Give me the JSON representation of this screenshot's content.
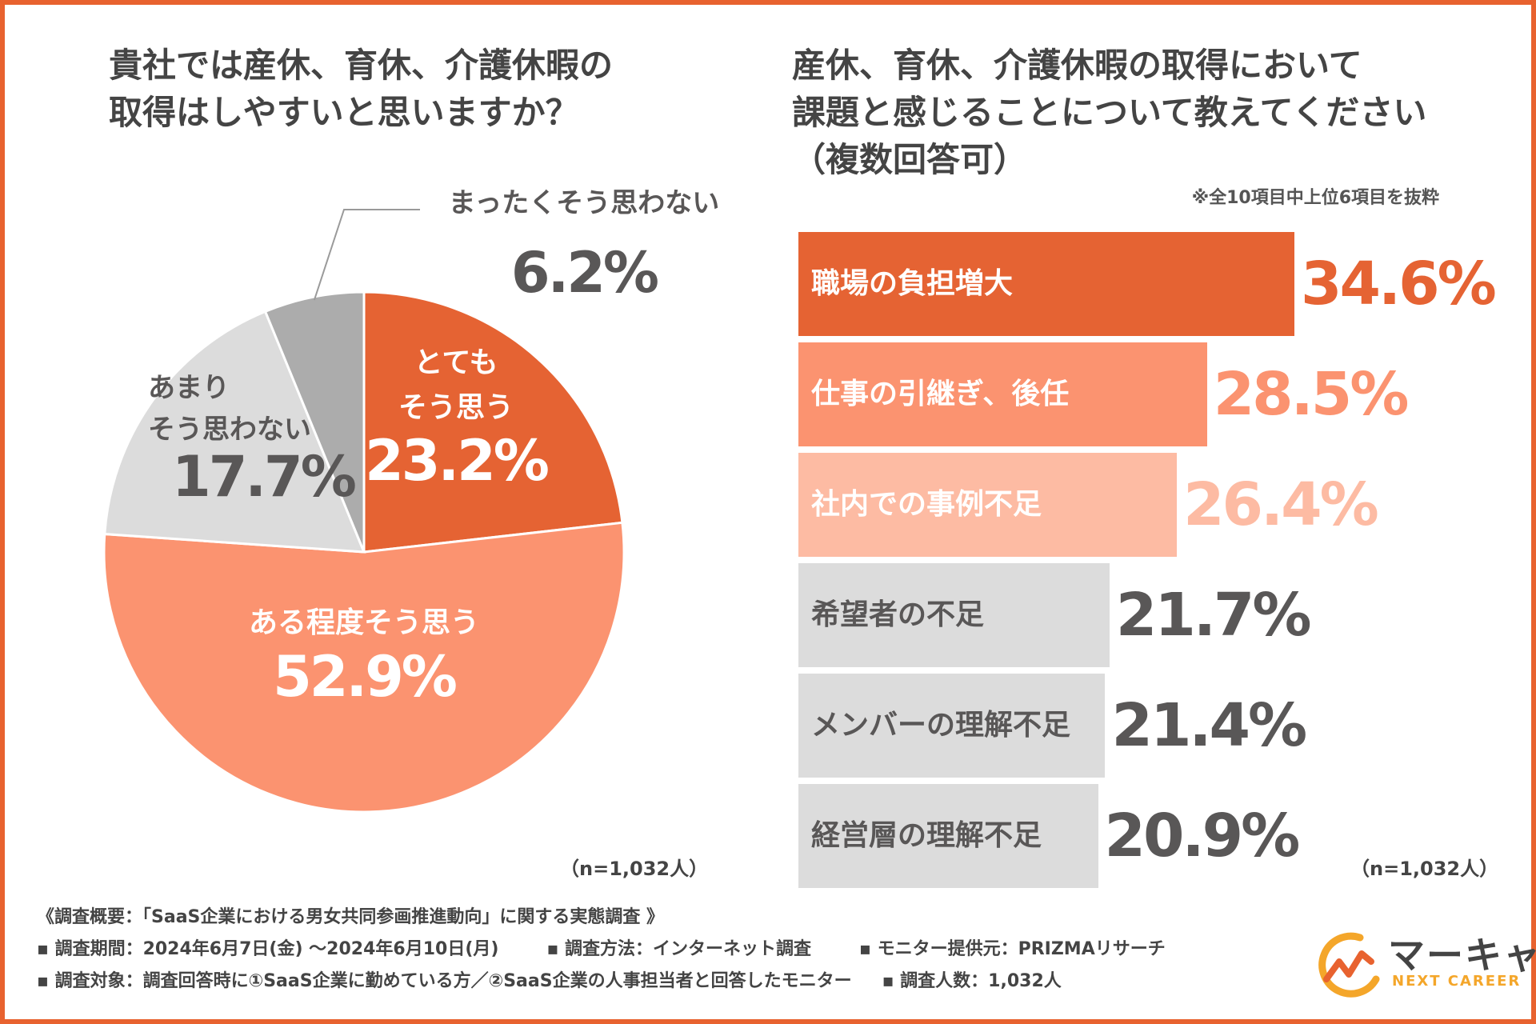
{
  "pie_chart": {
    "title_lines": [
      "貴社では産休、育休、介護休暇の",
      "取得はしやすいと思いますか？"
    ],
    "sample_size": "（n=1,032人）",
    "chart_data": {
      "type": "pie",
      "title": "貴社では産休、育休、介護休暇の取得はしやすいと思いますか？",
      "slices": [
        {
          "label_lines": [
            "とても",
            "そう思う"
          ],
          "value": 23.2,
          "value_text": "23.2%",
          "color": "#e56333",
          "label_color": "#ffffff"
        },
        {
          "label_lines": [
            "ある程度そう思う"
          ],
          "value": 52.9,
          "value_text": "52.9%",
          "color": "#fb9370",
          "label_color": "#ffffff"
        },
        {
          "label_lines": [
            "あまり",
            "そう思わない"
          ],
          "value": 17.7,
          "value_text": "17.7%",
          "color": "#dcdcdc",
          "label_color": "#595757"
        },
        {
          "label_lines": [
            "まったくそう思わない"
          ],
          "value": 6.2,
          "value_text": "6.2%",
          "color": "#acacac",
          "label_color": "#595757"
        }
      ]
    }
  },
  "bar_chart": {
    "title_lines": [
      "産休、育休、介護休暇の取得において",
      "課題と感じることについて教えてください",
      "（複数回答可）"
    ],
    "note": "※全10項目中上位6項目を抜粋",
    "sample_size": "（n=1,032人）",
    "chart_data": {
      "type": "bar",
      "orientation": "horizontal",
      "title": "産休、育休、介護休暇の取得において課題と感じることについて教えてください（複数回答可）",
      "categories": [
        "職場の負担増大",
        "仕事の引継ぎ、後任",
        "社内での事例不足",
        "希望者の不足",
        "メンバーの理解不足",
        "経営層の理解不足"
      ],
      "values": [
        34.6,
        28.5,
        26.4,
        21.7,
        21.4,
        20.9
      ],
      "value_texts": [
        "34.6%",
        "28.5%",
        "26.4%",
        "21.7%",
        "21.4%",
        "20.9%"
      ],
      "colors": [
        "#e56333",
        "#fb9370",
        "#fdbba3",
        "#dcdcdc",
        "#dcdcdc",
        "#dcdcdc"
      ],
      "label_colors": [
        "#ffffff",
        "#ffffff",
        "#ffffff",
        "#595757",
        "#595757",
        "#595757"
      ],
      "value_colors": [
        "#e56333",
        "#fb9370",
        "#fdbba3",
        "#595757",
        "#595757",
        "#595757"
      ],
      "xlim": [
        0,
        34.6
      ]
    }
  },
  "survey": {
    "heading": "《調査概要：「SaaS企業における男女共同参画推進動向」に関する実態調査 》",
    "period": "▪ 調査期間：2024年6月7日(金) ～2024年6月10日(月)",
    "method": "▪ 調査方法：インターネット調査",
    "provider": "▪ モニター提供元：PRIZMAリサーチ",
    "target": "▪ 調査対象：調査回答時に①SaaS企業に勤めている方／②SaaS企業の人事担当者と回答したモニター",
    "count": "▪ 調査人数：1,032人"
  },
  "logo": {
    "main": "マーキャリ",
    "sub": "NEXT CAREER",
    "accent": "#f4a62a"
  },
  "frame_color": "#e8622f"
}
